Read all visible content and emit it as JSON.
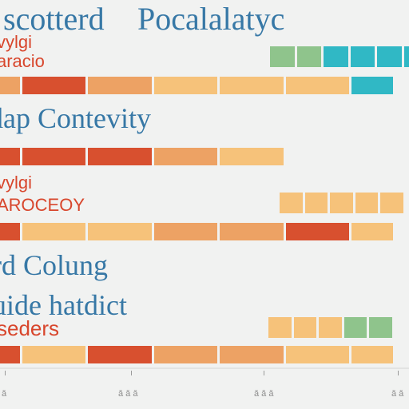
{
  "title_lines": [
    "scotterd",
    "Pocalalatyc"
  ],
  "labels": [
    {
      "text": "vylgi",
      "style": "red"
    },
    {
      "text": "aracio",
      "style": "red"
    },
    {
      "text": "dap Contevity",
      "style": "blue"
    },
    {
      "text": "vylgi",
      "style": "red"
    },
    {
      "text": "AROCEOY",
      "style": "red"
    },
    {
      "text": "rd Colung",
      "style": "blue"
    },
    {
      "text": "uide hatdict",
      "style": "blue"
    },
    {
      "text": "seders",
      "style": "red"
    }
  ],
  "tick_labels": [
    "ǎ",
    "ǎ ǎ ǎ",
    "ǎ ǎ ǎ",
    "ǎ ǎ"
  ],
  "colors": {
    "red": "#d8502f",
    "orange": "#eda264",
    "peach": "#f6c27a",
    "green": "#8fc48c",
    "teal": "#30b8c5",
    "blue_text": "#3778a6",
    "red_text": "#d8462c"
  },
  "chart_data": {
    "type": "bar",
    "stacked": true,
    "axis_scale": "no numeric values printed",
    "rows": [
      {
        "segments": [
          {
            "color": "green",
            "value": 1
          },
          {
            "color": "green",
            "value": 1
          },
          {
            "color": "teal",
            "value": 1
          },
          {
            "color": "teal",
            "value": 1
          },
          {
            "color": "teal",
            "value": 1
          },
          {
            "color": "teal",
            "value": 1
          }
        ]
      },
      {
        "segments": [
          {
            "color": "orange",
            "value": 1
          },
          {
            "color": "red",
            "value": 3
          },
          {
            "color": "orange",
            "value": 3
          },
          {
            "color": "peach",
            "value": 3
          },
          {
            "color": "peach",
            "value": 3
          },
          {
            "color": "peach",
            "value": 3
          },
          {
            "color": "teal",
            "value": 2
          }
        ]
      },
      {
        "segments": [
          {
            "color": "red",
            "value": 1
          },
          {
            "color": "red",
            "value": 3
          },
          {
            "color": "red",
            "value": 3
          },
          {
            "color": "orange",
            "value": 3
          },
          {
            "color": "peach",
            "value": 3
          }
        ]
      },
      {
        "segments": [
          {
            "color": "peach",
            "value": 1
          },
          {
            "color": "peach",
            "value": 1
          },
          {
            "color": "peach",
            "value": 1
          },
          {
            "color": "peach",
            "value": 1
          },
          {
            "color": "peach",
            "value": 1
          }
        ]
      },
      {
        "segments": [
          {
            "color": "red",
            "value": 1
          },
          {
            "color": "peach",
            "value": 3
          },
          {
            "color": "peach",
            "value": 3
          },
          {
            "color": "orange",
            "value": 3
          },
          {
            "color": "orange",
            "value": 3
          },
          {
            "color": "red",
            "value": 3
          },
          {
            "color": "peach",
            "value": 2
          }
        ]
      },
      {
        "segments": [
          {
            "color": "peach",
            "value": 1
          },
          {
            "color": "peach",
            "value": 1
          },
          {
            "color": "peach",
            "value": 1
          },
          {
            "color": "green",
            "value": 1
          },
          {
            "color": "green",
            "value": 1
          }
        ]
      },
      {
        "segments": [
          {
            "color": "red",
            "value": 1
          },
          {
            "color": "peach",
            "value": 3
          },
          {
            "color": "red",
            "value": 3
          },
          {
            "color": "orange",
            "value": 3
          },
          {
            "color": "orange",
            "value": 3
          },
          {
            "color": "peach",
            "value": 3
          },
          {
            "color": "peach",
            "value": 2
          }
        ]
      }
    ]
  }
}
